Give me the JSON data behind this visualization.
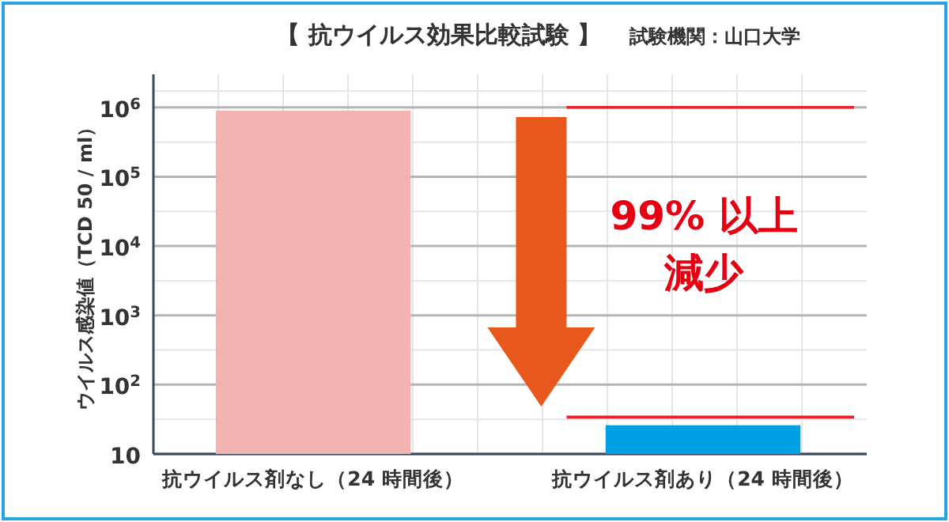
{
  "chart_data": {
    "type": "bar",
    "title": "【 抗ウイルス効果比較試験 】",
    "subtitle": "試験機関：山口大学",
    "ylabel": "ウイルス感染値（TCD 50 / ml）",
    "categories": [
      "抗ウイルス剤なし（24 時間後）",
      "抗ウイルス剤あり（24 時間後）"
    ],
    "values": [
      900000,
      26
    ],
    "colors": [
      "#f2b3b1",
      "#00a0e4"
    ],
    "log": true,
    "ylim": [
      10,
      3000000
    ],
    "yticks": [
      10,
      {
        "value": 100,
        "label": "10$^{2}$"
      },
      {
        "value": 1000,
        "label": "10$^{3}$"
      },
      {
        "value": 10000,
        "label": "10$^{4}$"
      },
      {
        "value": 100000,
        "label": "10$^{5}$"
      },
      {
        "value": 1000000,
        "label": "10$^{6}$"
      }
    ],
    "grid": true,
    "ref_lines": [
      {
        "axis": "y",
        "value": 1000000,
        "label": null,
        "color": "#e8202a"
      },
      {
        "axis": "y",
        "value": 34,
        "label": null,
        "color": "#e8202a"
      }
    ],
    "annotations": [
      "99% 以上",
      "減少"
    ]
  }
}
